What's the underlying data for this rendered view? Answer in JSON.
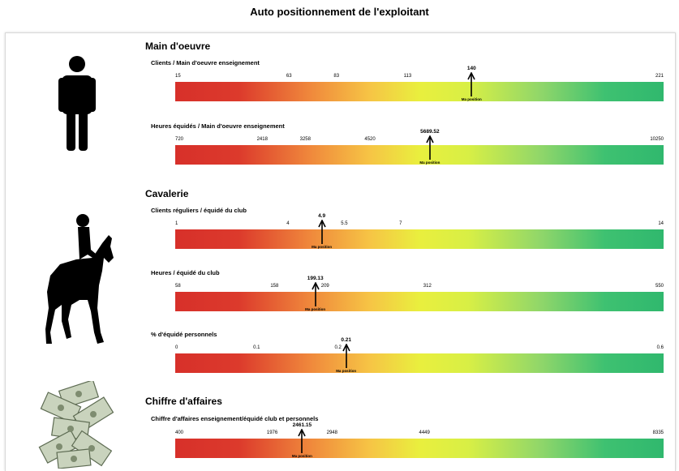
{
  "title": "Auto positionnement de l'exploitant",
  "marker_label": "Ma position",
  "colors": {
    "low": "#d7302a",
    "mid": "#e9ef3e",
    "high": "#30b86e"
  },
  "icons": {
    "main_oeuvre": "person-icon",
    "cavalerie": "horse-rider-icon",
    "chiffre_affaires": "money-banknotes-icon"
  },
  "sections": [
    {
      "title": "Main d'oeuvre",
      "metrics": [
        {
          "label": "Clients / Main d'oeuvre enseignement",
          "min": 15,
          "max": 221,
          "ticks": [
            "15",
            "63",
            "83",
            "113",
            "221"
          ],
          "tick_values": [
            15,
            63,
            83,
            113,
            221
          ],
          "position": 140,
          "position_label": "140"
        },
        {
          "label": "Heures équidés / Main d'oeuvre enseignement",
          "min": 720,
          "max": 10250,
          "ticks": [
            "720",
            "2418",
            "3258",
            "4520",
            "10250"
          ],
          "tick_values": [
            720,
            2418,
            3258,
            4520,
            10250
          ],
          "position": 5689.52,
          "position_label": "5689.52"
        }
      ]
    },
    {
      "title": "Cavalerie",
      "metrics": [
        {
          "label": "Clients réguliers / équidé du club",
          "min": 1,
          "max": 14,
          "ticks": [
            "1",
            "4",
            "5.5",
            "7",
            "14"
          ],
          "tick_values": [
            1,
            4,
            5.5,
            7,
            14
          ],
          "position": 4.9,
          "position_label": "4.9"
        },
        {
          "label": "Heures / équidé du club",
          "min": 58,
          "max": 550,
          "ticks": [
            "58",
            "158",
            "209",
            "312",
            "550"
          ],
          "tick_values": [
            58,
            158,
            209,
            312,
            550
          ],
          "position": 199.13,
          "position_label": "199.13"
        },
        {
          "label": "% d'équidé personnels",
          "min": 0,
          "max": 0.6,
          "ticks": [
            "0",
            "0.1",
            "0.2",
            "0.6"
          ],
          "tick_values": [
            0,
            0.1,
            0.2,
            0.6
          ],
          "position": 0.21,
          "position_label": "0.21"
        }
      ]
    },
    {
      "title": "Chiffre d'affaires",
      "metrics": [
        {
          "label": "Chiffre d'affaires enseignement/équidé club et personnels",
          "min": 400,
          "max": 8335,
          "ticks": [
            "400",
            "1976",
            "2948",
            "4449",
            "8335"
          ],
          "tick_values": [
            400,
            1976,
            2948,
            4449,
            8335
          ],
          "position": 2461.15,
          "position_label": "2461.15"
        }
      ]
    }
  ],
  "chart_data": {
    "type": "gauge",
    "title": "Auto positionnement de l'exploitant",
    "groups": [
      {
        "name": "Main d'oeuvre",
        "indicators": [
          {
            "name": "Clients / Main d'oeuvre enseignement",
            "range": [
              15,
              221
            ],
            "ticks": [
              15,
              63,
              83,
              113,
              221
            ],
            "value": 140
          },
          {
            "name": "Heures équidés / Main d'oeuvre enseignement",
            "range": [
              720,
              10250
            ],
            "ticks": [
              720,
              2418,
              3258,
              4520,
              10250
            ],
            "value": 5689.52
          }
        ]
      },
      {
        "name": "Cavalerie",
        "indicators": [
          {
            "name": "Clients réguliers / équidé du club",
            "range": [
              1,
              14
            ],
            "ticks": [
              1,
              4,
              5.5,
              7,
              14
            ],
            "value": 4.9
          },
          {
            "name": "Heures / équidé du club",
            "range": [
              58,
              550
            ],
            "ticks": [
              58,
              158,
              209,
              312,
              550
            ],
            "value": 199.13
          },
          {
            "name": "% d'équidé personnels",
            "range": [
              0,
              0.6
            ],
            "ticks": [
              0,
              0.1,
              0.2,
              0.6
            ],
            "value": 0.21
          }
        ]
      },
      {
        "name": "Chiffre d'affaires",
        "indicators": [
          {
            "name": "Chiffre d'affaires enseignement/équidé club et personnels",
            "range": [
              400,
              8335
            ],
            "ticks": [
              400,
              1976,
              2948,
              4449,
              8335
            ],
            "value": 2461.15
          }
        ]
      }
    ]
  }
}
